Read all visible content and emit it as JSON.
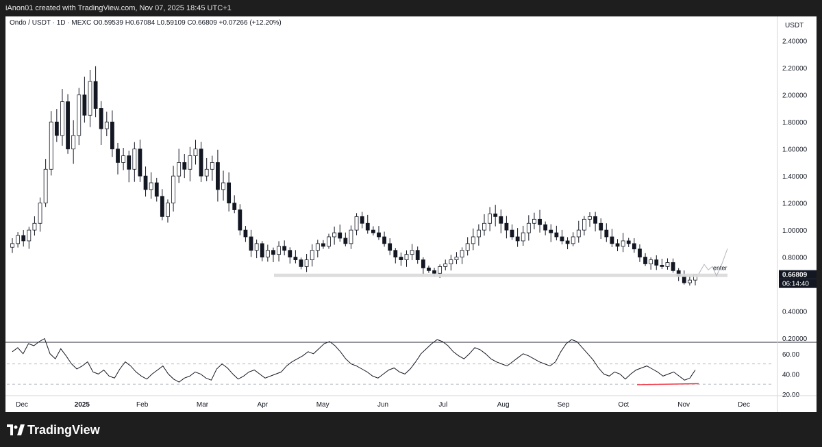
{
  "header": {
    "credit": "iAnon01 created with TradingView.com, Nov 07, 2025 18:45 UTC+1"
  },
  "legend": {
    "text": "Ondo / USDT · 1D · MEXC  O0.59539  H0.67084  L0.59109  C0.66809  +0.07266 (+12.20%)"
  },
  "footer": {
    "brand": "TradingView"
  },
  "chart_data": [
    {
      "type": "candlestick",
      "title": "Ondo / USDT · 1D · MEXC",
      "ohlc_last": {
        "open": 0.59539,
        "high": 0.67084,
        "low": 0.59109,
        "close": 0.66809,
        "change": 0.07266,
        "change_pct": 12.2
      },
      "currency": "USDT",
      "price_axis_ticks": [
        "2.40000",
        "2.20000",
        "2.00000",
        "1.80000",
        "1.60000",
        "1.40000",
        "1.20000",
        "1.00000",
        "0.80000",
        "0.60000",
        "0.40000",
        "0.20000"
      ],
      "ylim": [
        0.18,
        2.5
      ],
      "price_badge": "0.66809",
      "countdown": "06:14:40",
      "time_labels": [
        "Dec",
        "2025",
        "Feb",
        "Mar",
        "Apr",
        "May",
        "Jun",
        "Jul",
        "Aug",
        "Sep",
        "Oct",
        "Nov",
        "Dec"
      ],
      "support_level": 0.665,
      "annotation": "enter",
      "series": [
        {
          "values": [
            0.9,
            0.96,
            0.92,
            1.0,
            1.05,
            1.2,
            1.45,
            1.8,
            1.7,
            1.95,
            1.6,
            1.7,
            2.0,
            1.85,
            2.1,
            1.9,
            1.75,
            1.8,
            1.6,
            1.5,
            1.55,
            1.45,
            1.6,
            1.4,
            1.3,
            1.35,
            1.25,
            1.1,
            1.2,
            1.4,
            1.5,
            1.45,
            1.55,
            1.6,
            1.4,
            1.45,
            1.5,
            1.3,
            1.35,
            1.2,
            1.15,
            1.0,
            0.95,
            0.85,
            0.9,
            0.8,
            0.85,
            0.82,
            0.88,
            0.85,
            0.8,
            0.78,
            0.73,
            0.78,
            0.85,
            0.9,
            0.88,
            0.95,
            0.98,
            0.94,
            0.9,
            1.0,
            1.1,
            1.05,
            1.0,
            0.98,
            0.95,
            0.9,
            0.85,
            0.8,
            0.78,
            0.82,
            0.85,
            0.78,
            0.72,
            0.7,
            0.68,
            0.73,
            0.75,
            0.78,
            0.8,
            0.85,
            0.9,
            0.95,
            1.0,
            1.05,
            1.12,
            1.1,
            1.05,
            1.0,
            0.95,
            0.92,
            0.98,
            1.05,
            1.08,
            1.04,
            1.0,
            0.98,
            0.95,
            0.92,
            0.9,
            0.95,
            1.0,
            1.08,
            1.1,
            1.05,
            1.0,
            0.95,
            0.9,
            0.88,
            0.92,
            0.9,
            0.86,
            0.8,
            0.75,
            0.78,
            0.74,
            0.73,
            0.76,
            0.7,
            0.66,
            0.61,
            0.63,
            0.67
          ]
        }
      ]
    },
    {
      "type": "line",
      "title": "RSI",
      "axis_ticks": [
        "60.00",
        "40.00",
        "20.00"
      ],
      "ylim": [
        20,
        70
      ],
      "levels": [
        50,
        30
      ],
      "divergence_line": [
        29.5,
        30.5
      ],
      "series": [
        {
          "values": [
            62,
            66,
            60,
            70,
            68,
            72,
            75,
            60,
            55,
            65,
            58,
            50,
            45,
            48,
            52,
            42,
            40,
            44,
            38,
            36,
            45,
            52,
            48,
            42,
            38,
            35,
            40,
            44,
            48,
            40,
            35,
            32,
            36,
            38,
            42,
            40,
            36,
            34,
            45,
            50,
            46,
            40,
            35,
            38,
            42,
            44,
            40,
            36,
            38,
            40,
            42,
            48,
            52,
            55,
            58,
            62,
            60,
            65,
            70,
            72,
            68,
            62,
            55,
            50,
            48,
            45,
            42,
            38,
            36,
            40,
            44,
            46,
            42,
            40,
            45,
            52,
            60,
            65,
            70,
            74,
            72,
            68,
            62,
            58,
            55,
            60,
            66,
            64,
            60,
            55,
            52,
            50,
            48,
            52,
            56,
            60,
            58,
            55,
            52,
            50,
            48,
            52,
            62,
            70,
            74,
            72,
            66,
            60,
            54,
            46,
            40,
            38,
            42,
            40,
            35,
            40,
            44,
            46,
            48,
            45,
            42,
            38,
            40,
            42,
            38,
            34,
            36,
            44
          ]
        }
      ]
    }
  ]
}
